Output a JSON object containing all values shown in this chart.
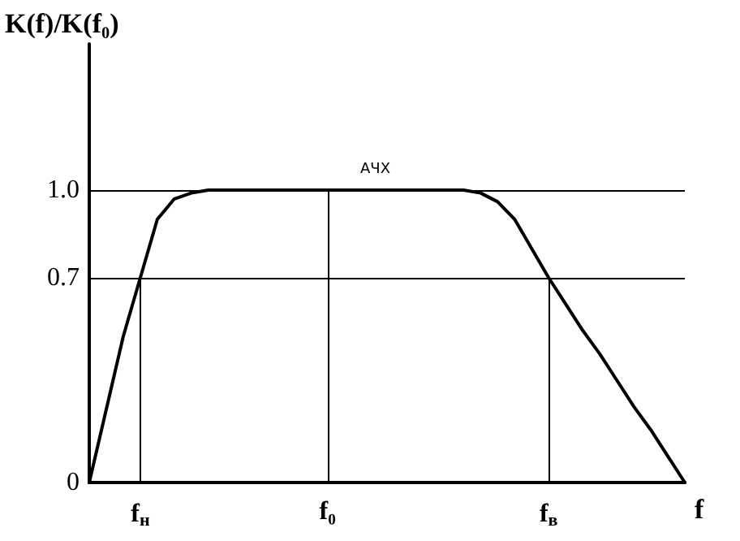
{
  "chart_data": {
    "type": "line",
    "xlabel": "f",
    "ylabel": "K(f)/K(f₀)",
    "categories": [
      null,
      null,
      null,
      "f$_{н}$",
      null,
      null,
      null,
      null,
      null,
      null,
      null,
      null,
      null,
      null,
      "f₀",
      null,
      null,
      null,
      null,
      null,
      null,
      null,
      null,
      null,
      null,
      null,
      null,
      "f$_{в}$",
      null,
      null,
      null,
      null,
      null,
      null,
      null,
      null
    ],
    "series": [
      {
        "color": "#000000",
        "values": [
          0,
          0.25,
          0.5,
          0.7,
          0.9,
          0.97,
          0.99,
          1.0,
          1.0,
          1.0,
          1.0,
          1.0,
          1.0,
          1.0,
          1.0,
          1.0,
          1.0,
          1.0,
          1.0,
          1.0,
          1.0,
          1.0,
          1.0,
          0.99,
          0.96,
          0.9,
          0.8,
          0.7,
          0.61,
          0.52,
          0.44,
          0.35,
          0.26,
          0.18,
          0.09,
          0
        ]
      }
    ],
    "ylim": [
      0,
      1.5
    ],
    "yticks": [
      0,
      0.7,
      {
        "value": 1,
        "label": "1.0"
      }
    ],
    "ref_lines": [
      {
        "axis": "y",
        "value": 1.0,
        "color": "#000000"
      },
      {
        "axis": "y",
        "value": 0.7,
        "color": "#000000"
      },
      {
        "axis": "x",
        "value": "f$_{н}$",
        "color": "#000000"
      },
      {
        "axis": "x",
        "value": "f₀",
        "color": "#000000"
      },
      {
        "axis": "x",
        "value": "f$_{в}$",
        "color": "#000000"
      }
    ],
    "annotations": [
      "АЧХ"
    ],
    "grid": false,
    "marker": "none",
    "line_style": "solid"
  }
}
